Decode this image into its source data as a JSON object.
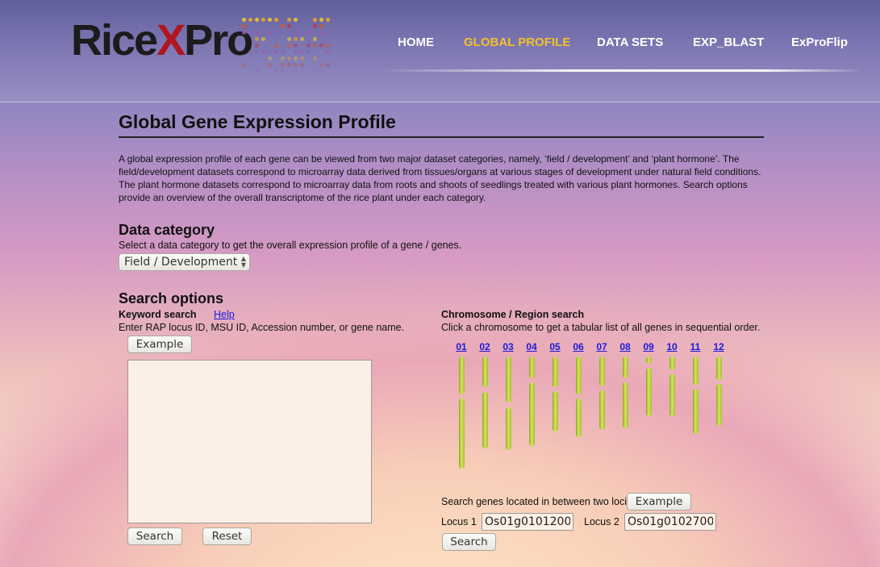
{
  "brand": {
    "logo_rice": "Rice",
    "logo_x": "X",
    "logo_pro": "Pro"
  },
  "nav": {
    "items": [
      "HOME",
      "GLOBAL PROFILE",
      "DATA SETS",
      "EXP_BLAST",
      "ExProFlip"
    ],
    "active": "GLOBAL PROFILE"
  },
  "page": {
    "title": "Global Gene Expression Profile",
    "intro": "A global expression profile of each gene can be viewed from two major dataset categories, namely, ‘field / development’ and ‘plant hormone’. The field/development datasets correspond to microarray data derived from tissues/organs at various stages of development under natural field conditions. The plant hormone datasets correspond to microarray data from roots and shoots of seedlings treated with various plant hormones. Search options provide an overview of the overall transcriptome of the rice plant under each category."
  },
  "data_category": {
    "heading": "Data category",
    "description": "Select a data category to get the overall expression profile of a gene / genes.",
    "selected": "Field / Development"
  },
  "search_options": {
    "heading": "Search options",
    "keyword": {
      "label": "Keyword search",
      "help": "Help",
      "instructions": "Enter RAP locus ID, MSU ID, Accession number, or gene name.",
      "example_button": "Example",
      "textarea_value": "",
      "search_button": "Search",
      "reset_button": "Reset"
    },
    "chromosome": {
      "label": "Chromosome / Region search",
      "instructions": "Click a chromosome to get a tabular list of all genes in sequential order.",
      "chromosomes": [
        "01",
        "02",
        "03",
        "04",
        "05",
        "06",
        "07",
        "08",
        "09",
        "10",
        "11",
        "12"
      ]
    },
    "loci": {
      "label": "Search genes located in between two loci",
      "example_button": "Example",
      "locus1_label": "Locus 1",
      "locus1_value": "Os01g0101200",
      "locus2_label": "Locus 2",
      "locus2_value": "Os01g0102700",
      "search_button": "Search"
    }
  },
  "colors": {
    "nav_active": "#f3c02a",
    "link": "#1a1adb",
    "chromosome": "#c8d84a",
    "logo_x": "#b0161d"
  }
}
